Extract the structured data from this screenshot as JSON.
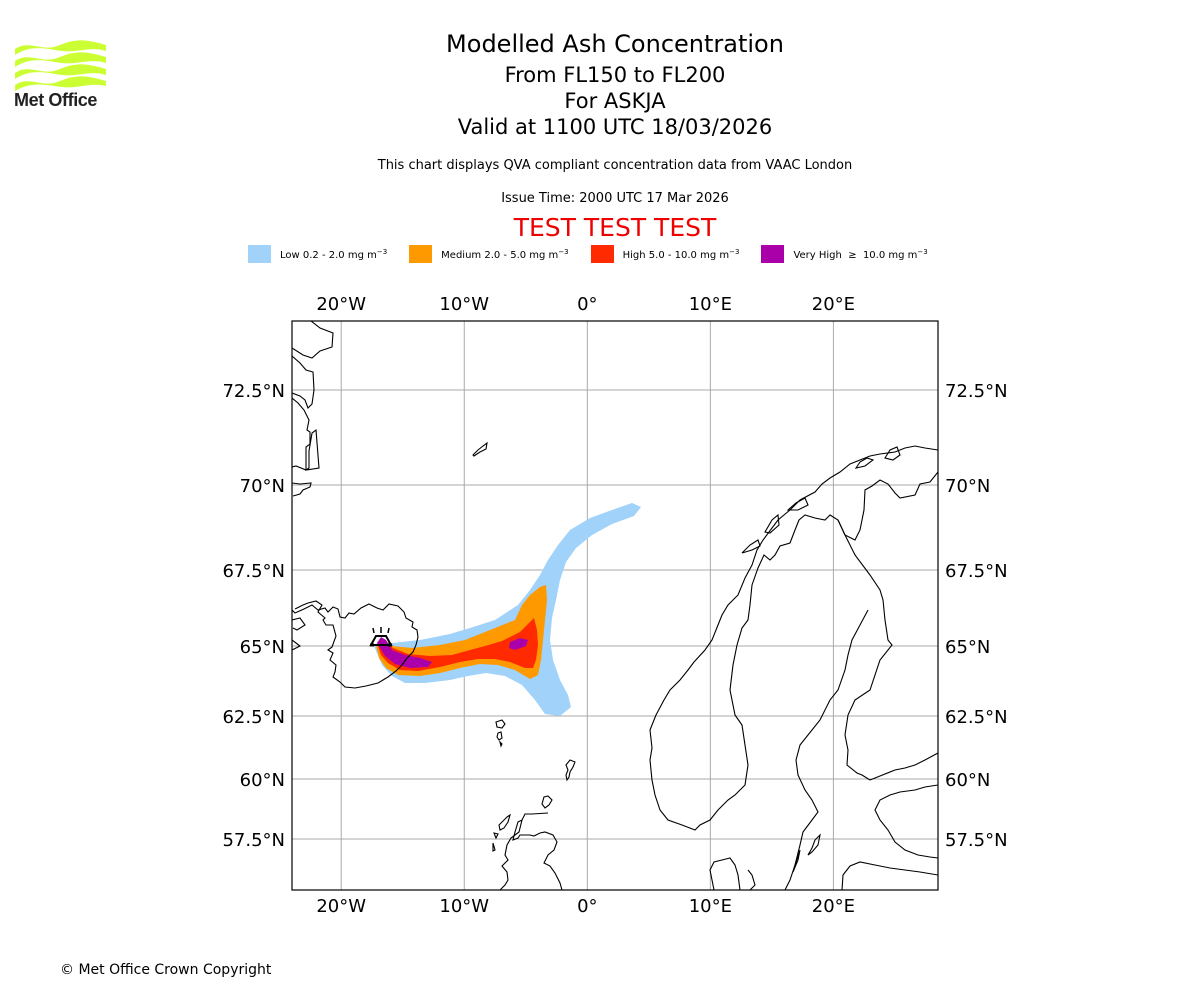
{
  "logo": {
    "text": "Met Office",
    "icon": "met-office-waves-logo",
    "color": "#ccff33"
  },
  "header": {
    "title": "Modelled Ash Concentration",
    "level": "From FL150 to FL200",
    "volcano": "For ASKJA",
    "valid": "Valid at 1100 UTC 18/03/2026",
    "description": "This chart displays QVA compliant concentration data from VAAC London",
    "issue_time": "Issue Time: 2000 UTC 17 Mar 2026",
    "test_banner": "TEST TEST TEST",
    "test_color": "#ee0000"
  },
  "legend": [
    {
      "label": "Low 0.2 - 2.0 mg m",
      "unit_exp": "−3",
      "color": "#a0d2fa"
    },
    {
      "label": "Medium 2.0 - 5.0 mg m",
      "unit_exp": "−3",
      "color": "#ff9900"
    },
    {
      "label": "High 5.0 - 10.0 mg m",
      "unit_exp": "−3",
      "color": "#ff2a00"
    },
    {
      "label": "Very High  ≥  10.0 mg m",
      "unit_exp": "−3",
      "color": "#aa00aa"
    }
  ],
  "map": {
    "lon_range": [
      -24,
      28.5
    ],
    "lat_range": [
      55.5,
      74.5
    ],
    "lon_ticks": [
      {
        "value": -20,
        "label": "20°W"
      },
      {
        "value": -10,
        "label": "10°W"
      },
      {
        "value": 0,
        "label": "0°"
      },
      {
        "value": 10,
        "label": "10°E"
      },
      {
        "value": 20,
        "label": "20°E"
      }
    ],
    "lat_ticks": [
      {
        "value": 72.5,
        "label": "72.5°N"
      },
      {
        "value": 70,
        "label": "70°N"
      },
      {
        "value": 67.5,
        "label": "67.5°N"
      },
      {
        "value": 65,
        "label": "65°N"
      },
      {
        "value": 62.5,
        "label": "62.5°N"
      },
      {
        "value": 60,
        "label": "60°N"
      },
      {
        "value": 57.5,
        "label": "57.5°N"
      }
    ],
    "grid": true,
    "volcano": {
      "name": "ASKJA",
      "lon": -16.75,
      "lat": 65.03,
      "icon": "volcano-icon"
    }
  },
  "footer": {
    "copyright": "© Met Office Crown Copyright"
  }
}
